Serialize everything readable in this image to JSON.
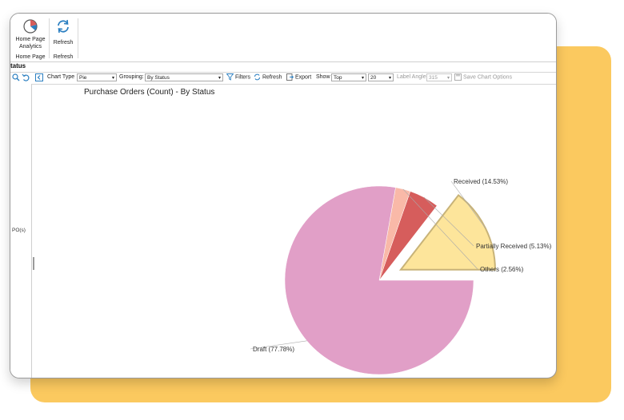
{
  "ribbon": {
    "home_group": {
      "button_label_line1": "Home Page",
      "button_label_line2": "Analytics",
      "group_label": "Home Page"
    },
    "refresh_group": {
      "button_label": "Refresh",
      "group_label": "Refresh"
    }
  },
  "section_title": "tatus",
  "toolbar": {
    "chart_type_label": "Chart Type",
    "chart_type_value": "Pie",
    "grouping_label": "Grouping:",
    "grouping_value": "By Status",
    "filters_label": "Filters",
    "refresh_label": "Refresh",
    "export_label": "Export",
    "show_label": "Show",
    "show_value": "Top",
    "count_value": "20",
    "label_angle_label": "Label Angle",
    "label_angle_value": "315",
    "save_options_label": "Save Chart Options"
  },
  "left_pane": {
    "label": "PO(s)"
  },
  "colors": {
    "draft": "#e19fc7",
    "received": "#fde59b",
    "received_border": "#c8b378",
    "partially_received": "#d65d5c",
    "others": "#f9b9a8",
    "accent": "#2b7fc1"
  },
  "chart_data": {
    "type": "pie",
    "title": "Purchase Orders (Count) - By Status",
    "slices": [
      {
        "name": "Received",
        "value": 14.53,
        "label": "Received (14.53%)",
        "exploded": true
      },
      {
        "name": "Partially Received",
        "value": 5.13,
        "label": "Partially Received (5.13%)",
        "exploded": false
      },
      {
        "name": "Others",
        "value": 2.56,
        "label": "Others (2.56%)",
        "exploded": false
      },
      {
        "name": "Draft",
        "value": 77.78,
        "label": "Draft (77.78%)",
        "exploded": false
      }
    ]
  }
}
